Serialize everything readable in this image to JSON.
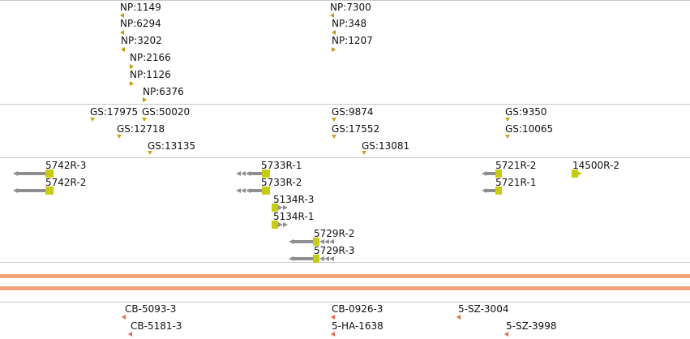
{
  "tracks": {
    "np": {
      "features": [
        {
          "label": "NP:1149",
          "dir": "left"
        },
        {
          "label": "NP:6294",
          "dir": "left"
        },
        {
          "label": "NP:3202",
          "dir": "left"
        },
        {
          "label": "NP:2166",
          "dir": "right"
        },
        {
          "label": "NP:1126",
          "dir": "right"
        },
        {
          "label": "NP:6376",
          "dir": "right"
        },
        {
          "label": "NP:7300",
          "dir": "left"
        },
        {
          "label": "NP:348",
          "dir": "left"
        },
        {
          "label": "NP:1207",
          "dir": "right"
        }
      ]
    },
    "gs": {
      "features": [
        {
          "label": "GS:17975"
        },
        {
          "label": "GS:50020"
        },
        {
          "label": "GS:12718"
        },
        {
          "label": "GS:13135"
        },
        {
          "label": "GS:9874"
        },
        {
          "label": "GS:17552"
        },
        {
          "label": "GS:13081"
        },
        {
          "label": "GS:9350"
        },
        {
          "label": "GS:10065"
        }
      ]
    },
    "genes": {
      "features": [
        {
          "label": "5742R-3",
          "strand": "-"
        },
        {
          "label": "5742R-2",
          "strand": "-"
        },
        {
          "label": "5733R-1",
          "strand": "-"
        },
        {
          "label": "5733R-2",
          "strand": "-"
        },
        {
          "label": "5134R-3",
          "strand": "+"
        },
        {
          "label": "5134R-1",
          "strand": "+"
        },
        {
          "label": "5729R-2",
          "strand": "-"
        },
        {
          "label": "5729R-3",
          "strand": "-"
        },
        {
          "label": "5721R-2",
          "strand": "-"
        },
        {
          "label": "5721R-1",
          "strand": "-"
        },
        {
          "label": "14500R-2",
          "strand": "+"
        }
      ]
    },
    "cb": {
      "features": [
        {
          "label": "CB-5093-3"
        },
        {
          "label": "CB-5181-3"
        },
        {
          "label": "CB-0926-3"
        },
        {
          "label": "5-HA-1638"
        },
        {
          "label": "5-SZ-3004"
        },
        {
          "label": "5-SZ-3998"
        }
      ]
    }
  },
  "colors": {
    "np_marker": "#c8930f",
    "gs_marker": "#d6a21a",
    "gene_body": "#8f8f8f",
    "gene_cap": "#c6cc12",
    "cb_marker": "#e8684a",
    "band": "#f2a47a",
    "divider": "#c8c8c8"
  }
}
